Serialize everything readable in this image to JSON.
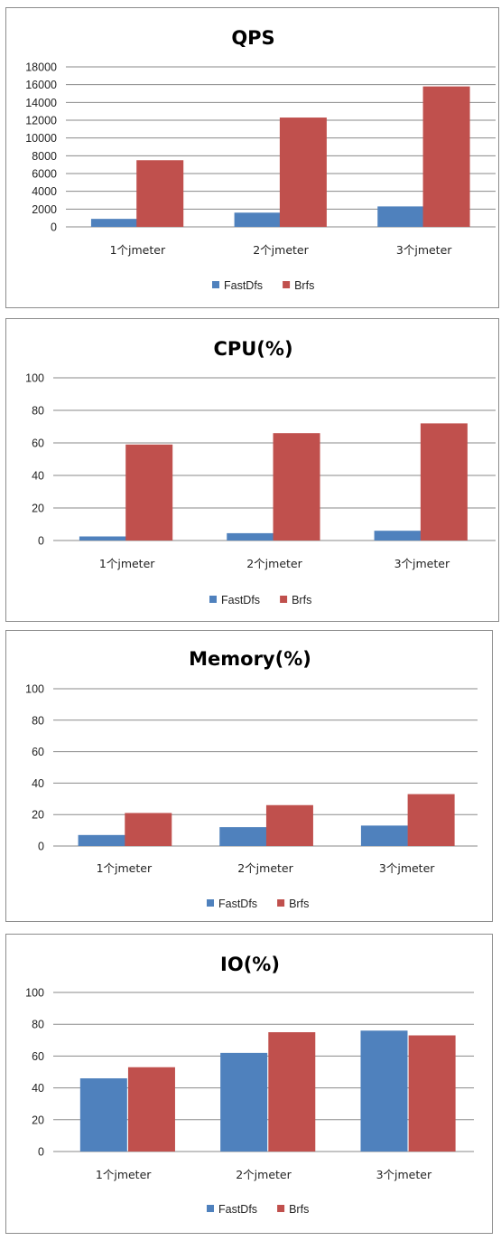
{
  "colors": {
    "FastDfs": "#4f81bd",
    "Brfs": "#c0504d"
  },
  "chart_data": [
    {
      "type": "bar",
      "title": "QPS",
      "categories": [
        "1个jmeter",
        "2个jmeter",
        "3个jmeter"
      ],
      "series": [
        {
          "name": "FastDfs",
          "values": [
            900,
            1600,
            2300
          ]
        },
        {
          "name": "Brfs",
          "values": [
            7500,
            12300,
            15800
          ]
        }
      ],
      "ylim": [
        0,
        18000
      ],
      "yticks": [
        0,
        2000,
        4000,
        6000,
        8000,
        10000,
        12000,
        14000,
        16000,
        18000
      ],
      "grid": true,
      "legend": "bottom"
    },
    {
      "type": "bar",
      "title": "CPU(%)",
      "categories": [
        "1个jmeter",
        "2个jmeter",
        "3个jmeter"
      ],
      "series": [
        {
          "name": "FastDfs",
          "values": [
            2.5,
            4.5,
            6
          ]
        },
        {
          "name": "Brfs",
          "values": [
            59,
            66,
            72
          ]
        }
      ],
      "ylim": [
        0,
        100
      ],
      "yticks": [
        0,
        20,
        40,
        60,
        80,
        100
      ],
      "grid": true,
      "legend": "bottom"
    },
    {
      "type": "bar",
      "title": "Memory(%)",
      "categories": [
        "1个jmeter",
        "2个jmeter",
        "3个jmeter"
      ],
      "series": [
        {
          "name": "FastDfs",
          "values": [
            7,
            12,
            13
          ]
        },
        {
          "name": "Brfs",
          "values": [
            21,
            26,
            33
          ]
        }
      ],
      "ylim": [
        0,
        100
      ],
      "yticks": [
        0,
        20,
        40,
        60,
        80,
        100
      ],
      "grid": true,
      "legend": "bottom"
    },
    {
      "type": "bar",
      "title": "IO(%)",
      "categories": [
        "1个jmeter",
        "2个jmeter",
        "3个jmeter"
      ],
      "series": [
        {
          "name": "FastDfs",
          "values": [
            46,
            62,
            76
          ]
        },
        {
          "name": "Brfs",
          "values": [
            53,
            75,
            73
          ]
        }
      ],
      "ylim": [
        0,
        100
      ],
      "yticks": [
        0,
        20,
        40,
        60,
        80,
        100
      ],
      "grid": true,
      "legend": "bottom"
    }
  ]
}
